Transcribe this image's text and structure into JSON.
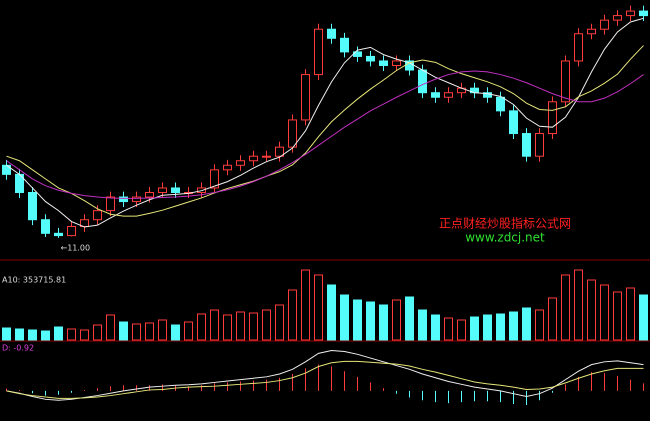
{
  "chart_data": [
    {
      "type": "candlestick",
      "up_color": "#ff3c3c",
      "down_color": "#54fcfc",
      "open": [
        12.6,
        12.4,
        12.0,
        11.4,
        11.1,
        11.05,
        11.25,
        11.4,
        11.6,
        11.9,
        11.8,
        11.9,
        12.0,
        12.1,
        12.0,
        12.0,
        12.1,
        12.5,
        12.6,
        12.7,
        12.8,
        12.8,
        13.0,
        13.6,
        14.6,
        15.6,
        15.4,
        15.1,
        15.0,
        14.9,
        14.8,
        14.9,
        14.7,
        14.2,
        14.1,
        14.2,
        14.3,
        14.2,
        14.1,
        13.8,
        13.3,
        12.8,
        13.3,
        14.0,
        14.9,
        15.5,
        15.6,
        15.8,
        15.9,
        16.0
      ],
      "high": [
        12.72,
        12.52,
        12.12,
        11.52,
        11.22,
        11.37,
        11.52,
        11.72,
        12.02,
        12.02,
        12.02,
        12.12,
        12.22,
        12.22,
        12.12,
        12.22,
        12.62,
        12.72,
        12.82,
        12.92,
        12.92,
        13.12,
        13.72,
        14.72,
        15.72,
        15.72,
        15.52,
        15.22,
        15.12,
        15.02,
        15.02,
        15.02,
        14.82,
        14.32,
        14.32,
        14.42,
        14.42,
        14.32,
        14.22,
        13.92,
        13.42,
        13.42,
        14.12,
        15.02,
        15.62,
        15.72,
        15.92,
        16.02,
        16.12,
        16.12
      ],
      "low": [
        12.28,
        11.88,
        11.28,
        11.02,
        11.0,
        11.03,
        11.13,
        11.28,
        11.48,
        11.68,
        11.68,
        11.78,
        11.88,
        11.88,
        11.88,
        11.88,
        11.98,
        12.38,
        12.48,
        12.58,
        12.68,
        12.68,
        12.88,
        13.48,
        14.48,
        15.28,
        14.98,
        14.88,
        14.78,
        14.68,
        14.68,
        14.58,
        14.08,
        13.98,
        13.98,
        14.08,
        14.08,
        13.98,
        13.68,
        13.18,
        12.68,
        12.68,
        13.18,
        13.88,
        14.78,
        15.38,
        15.48,
        15.68,
        15.78,
        15.78
      ],
      "close": [
        12.4,
        12.0,
        11.4,
        11.1,
        11.05,
        11.25,
        11.4,
        11.6,
        11.9,
        11.8,
        11.9,
        12.0,
        12.1,
        12.0,
        12.0,
        12.1,
        12.5,
        12.6,
        12.7,
        12.8,
        12.8,
        13.0,
        13.6,
        14.6,
        15.6,
        15.4,
        15.1,
        15.0,
        14.9,
        14.8,
        14.9,
        14.7,
        14.2,
        14.1,
        14.2,
        14.3,
        14.2,
        14.1,
        13.8,
        13.3,
        12.8,
        13.3,
        14.0,
        14.9,
        15.5,
        15.6,
        15.8,
        15.9,
        16.0,
        15.9
      ],
      "series": [
        {
          "color": "#f0f0f0",
          "values": [
            12.6,
            12.4,
            12.1,
            11.8,
            11.6,
            11.36,
            11.24,
            11.28,
            11.44,
            11.59,
            11.72,
            11.84,
            11.94,
            11.96,
            11.98,
            12.04,
            12.14,
            12.24,
            12.38,
            12.54,
            12.68,
            12.78,
            12.98,
            13.36,
            13.92,
            14.44,
            14.86,
            15.14,
            15.2,
            15.04,
            14.94,
            14.86,
            14.7,
            14.54,
            14.42,
            14.3,
            14.2,
            14.18,
            14.12,
            13.94,
            13.64,
            13.46,
            13.44,
            13.66,
            14.1,
            14.66,
            15.16,
            15.54,
            15.76,
            15.84
          ]
        },
        {
          "color": "#e6e67a",
          "values": [
            12.8,
            12.7,
            12.5,
            12.3,
            12.1,
            11.98,
            11.82,
            11.64,
            11.52,
            11.48,
            11.48,
            11.54,
            11.61,
            11.7,
            11.79,
            11.88,
            11.99,
            12.09,
            12.17,
            12.25,
            12.36,
            12.46,
            12.61,
            12.87,
            13.23,
            13.56,
            13.82,
            14.06,
            14.28,
            14.48,
            14.69,
            14.86,
            14.92,
            14.87,
            14.73,
            14.62,
            14.53,
            14.44,
            14.33,
            14.18,
            13.97,
            13.83,
            13.81,
            13.89,
            14.11,
            14.24,
            14.41,
            14.61,
            14.94,
            15.24
          ]
        },
        {
          "color": "#c030c0",
          "values": [
            12.7,
            12.5,
            12.3,
            12.15,
            12.05,
            11.98,
            11.93,
            11.9,
            11.88,
            11.87,
            11.87,
            11.88,
            11.89,
            11.9,
            11.92,
            11.95,
            12.0,
            12.06,
            12.14,
            12.24,
            12.36,
            12.5,
            12.66,
            12.84,
            13.04,
            13.24,
            13.44,
            13.62,
            13.8,
            13.95,
            14.1,
            14.24,
            14.38,
            14.5,
            14.6,
            14.66,
            14.68,
            14.66,
            14.6,
            14.52,
            14.42,
            14.3,
            14.18,
            14.08,
            14.0,
            14.0,
            14.08,
            14.22,
            14.4,
            14.6
          ]
        }
      ],
      "low_marker": {
        "value": 11.0,
        "label": "←11.00"
      },
      "ylim": [
        10.6,
        16.2
      ]
    },
    {
      "type": "bar",
      "label": "A10: 353715.81",
      "values": [
        120000,
        110000,
        100000,
        90000,
        130000,
        110000,
        100000,
        150000,
        250000,
        180000,
        160000,
        170000,
        200000,
        150000,
        180000,
        260000,
        300000,
        250000,
        280000,
        270000,
        300000,
        350000,
        500000,
        700000,
        650000,
        550000,
        450000,
        400000,
        380000,
        350000,
        400000,
        430000,
        300000,
        250000,
        220000,
        200000,
        230000,
        250000,
        260000,
        280000,
        320000,
        300000,
        420000,
        650000,
        700000,
        600000,
        550000,
        480000,
        520000,
        450000
      ],
      "ylim": [
        0,
        760000
      ]
    },
    {
      "type": "macd",
      "label": "D: -0.92",
      "up_color": "#ff3c3c",
      "down_color": "#54fcfc",
      "values": [
        0.05,
        0.02,
        -0.05,
        -0.1,
        -0.08,
        -0.04,
        0.02,
        0.06,
        0.1,
        0.12,
        0.12,
        0.12,
        0.14,
        0.12,
        0.1,
        0.12,
        0.16,
        0.18,
        0.2,
        0.22,
        0.24,
        0.28,
        0.36,
        0.48,
        0.56,
        0.52,
        0.42,
        0.3,
        0.18,
        0.06,
        -0.06,
        -0.14,
        -0.2,
        -0.24,
        -0.26,
        -0.24,
        -0.22,
        -0.22,
        -0.24,
        -0.28,
        -0.3,
        -0.2,
        -0.04,
        0.14,
        0.3,
        0.4,
        0.38,
        0.32,
        0.24,
        0.16
      ],
      "series": [
        {
          "color": "#f0f0f0",
          "values": [
            0.0,
            -0.05,
            -0.12,
            -0.18,
            -0.2,
            -0.18,
            -0.14,
            -0.1,
            -0.05,
            0.0,
            0.04,
            0.08,
            0.1,
            0.12,
            0.13,
            0.15,
            0.18,
            0.21,
            0.24,
            0.27,
            0.3,
            0.36,
            0.46,
            0.62,
            0.8,
            0.86,
            0.84,
            0.78,
            0.7,
            0.62,
            0.54,
            0.46,
            0.36,
            0.28,
            0.2,
            0.14,
            0.08,
            0.04,
            0.0,
            -0.06,
            -0.12,
            -0.06,
            0.06,
            0.24,
            0.42,
            0.56,
            0.62,
            0.64,
            0.6,
            0.56
          ]
        },
        {
          "color": "#e6e67a",
          "values": [
            0.0,
            -0.06,
            -0.1,
            -0.13,
            -0.16,
            -0.16,
            -0.15,
            -0.13,
            -0.1,
            -0.06,
            -0.02,
            0.02,
            0.03,
            0.06,
            0.08,
            0.09,
            0.1,
            0.12,
            0.14,
            0.16,
            0.18,
            0.22,
            0.28,
            0.38,
            0.52,
            0.6,
            0.63,
            0.63,
            0.61,
            0.59,
            0.57,
            0.53,
            0.46,
            0.4,
            0.33,
            0.26,
            0.19,
            0.15,
            0.12,
            0.08,
            0.03,
            0.04,
            0.08,
            0.17,
            0.27,
            0.36,
            0.43,
            0.48,
            0.48,
            0.48
          ]
        }
      ],
      "ylim": [
        -0.6,
        1.0
      ]
    }
  ],
  "watermark": {
    "title": "正点财经炒股指标公式网",
    "url": "www.zdcj.net"
  }
}
